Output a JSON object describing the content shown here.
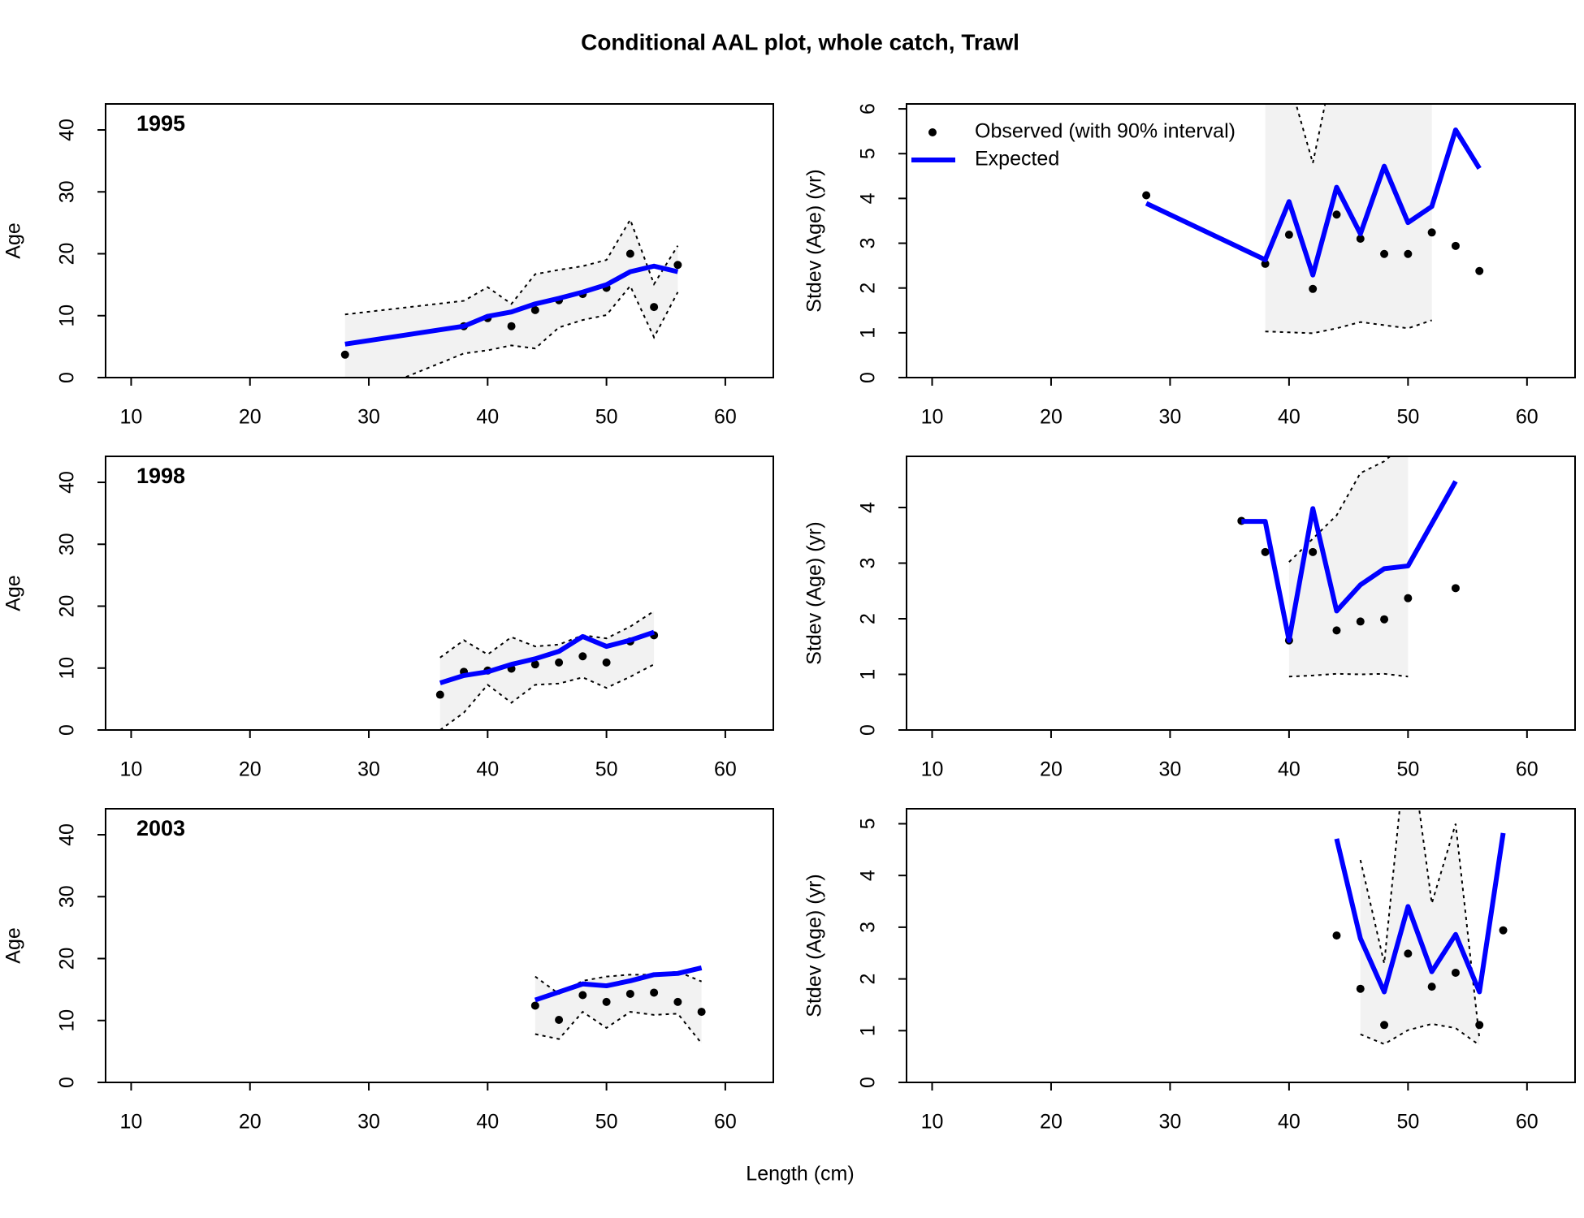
{
  "title": "Conditional AAL plot, whole catch, Trawl",
  "xlabel": "Length (cm)",
  "chart_data": [
    {
      "type": "line",
      "label": "1995",
      "ylabel": "Age",
      "xlim": [
        7.85,
        64.04
      ],
      "xticks": [
        10,
        20,
        30,
        40,
        50,
        60
      ],
      "ylim": [
        0,
        44.2
      ],
      "yticks": [
        0,
        10,
        20,
        30,
        40
      ],
      "x": [
        28,
        38,
        40,
        42,
        44,
        46,
        48,
        50,
        52,
        54,
        56
      ],
      "series": [
        {
          "color": "#000000",
          "interval_color": "#f2f2f2",
          "values": [
            3.7,
            8.3,
            9.6,
            8.3,
            10.9,
            12.5,
            13.5,
            14.5,
            20.0,
            11.4,
            18.2
          ],
          "lower": [
            -3.9,
            3.9,
            4.4,
            5.2,
            4.7,
            8.1,
            9.3,
            10.1,
            14.8,
            6.5,
            13.8
          ],
          "upper": [
            10.2,
            12.4,
            14.6,
            11.9,
            16.7,
            17.4,
            18.0,
            19.0,
            25.5,
            15.1,
            21.3
          ]
        },
        {
          "color": "#0000ff",
          "values": [
            5.4,
            8.3,
            9.9,
            10.6,
            11.9,
            12.8,
            13.8,
            15.0,
            17.1,
            18.0,
            17.1
          ]
        }
      ]
    },
    {
      "type": "line",
      "ylabel": "Stdev (Age) (yr)",
      "legend": "topleft",
      "xlim": [
        7.85,
        64.04
      ],
      "xticks": [
        10,
        20,
        30,
        40,
        50,
        60
      ],
      "ylim": [
        0,
        6.11
      ],
      "yticks": [
        0,
        1,
        2,
        3,
        4,
        5,
        6
      ],
      "x": [
        28,
        38,
        40,
        42,
        44,
        46,
        48,
        50,
        52,
        54,
        56
      ],
      "series": [
        {
          "name": "Observed (with 90% interval)",
          "color": "#000000",
          "interval_color": "#f2f2f2",
          "values": [
            4.07,
            2.54,
            3.19,
            1.98,
            3.64,
            3.1,
            2.76,
            2.76,
            3.24,
            2.94,
            2.38
          ],
          "lower": [
            null,
            1.03,
            1.01,
            0.99,
            1.1,
            1.24,
            1.17,
            1.1,
            1.28,
            null,
            null
          ],
          "upper": [
            null,
            7.5,
            6.65,
            4.79,
            7.35,
            8,
            8.5,
            8,
            7,
            null,
            null
          ]
        },
        {
          "name": "Expected",
          "color": "#0000ff",
          "values": [
            3.89,
            2.63,
            3.93,
            2.29,
            4.25,
            3.21,
            4.72,
            3.46,
            3.82,
            5.53,
            4.67
          ]
        }
      ]
    },
    {
      "type": "line",
      "label": "1998",
      "ylabel": "Age",
      "xlim": [
        7.85,
        64.04
      ],
      "xticks": [
        10,
        20,
        30,
        40,
        50,
        60
      ],
      "ylim": [
        0,
        44.2
      ],
      "yticks": [
        0,
        10,
        20,
        30,
        40
      ],
      "x": [
        36,
        38,
        40,
        42,
        44,
        46,
        48,
        50,
        52,
        54
      ],
      "series": [
        {
          "color": "#000000",
          "interval_color": "#f2f2f2",
          "values": [
            5.7,
            9.4,
            9.6,
            9.9,
            10.6,
            10.9,
            11.9,
            10.9,
            14.3,
            15.3
          ],
          "lower": [
            0.0,
            2.8,
            7.3,
            4.4,
            7.3,
            7.5,
            8.5,
            6.8,
            8.6,
            10.6
          ],
          "upper": [
            11.7,
            14.5,
            12.2,
            15.0,
            13.5,
            13.8,
            15.3,
            14.8,
            16.7,
            19.2
          ]
        },
        {
          "color": "#0000ff",
          "values": [
            7.6,
            8.8,
            9.4,
            10.6,
            11.5,
            12.7,
            15.1,
            13.5,
            14.5,
            15.8
          ]
        }
      ]
    },
    {
      "type": "line",
      "ylabel": "Stdev (Age) (yr)",
      "xlim": [
        7.85,
        64.04
      ],
      "xticks": [
        10,
        20,
        30,
        40,
        50,
        60
      ],
      "ylim": [
        0,
        4.92
      ],
      "yticks": [
        0,
        1,
        2,
        3,
        4
      ],
      "x": [
        36,
        38,
        40,
        42,
        44,
        46,
        48,
        50,
        54
      ],
      "series": [
        {
          "color": "#000000",
          "interval_color": "#f2f2f2",
          "values": [
            3.76,
            3.2,
            1.61,
            3.2,
            1.79,
            1.95,
            1.99,
            2.37,
            2.55
          ],
          "lower": [
            null,
            null,
            0.96,
            0.98,
            1.01,
            1.0,
            1.01,
            0.96,
            null
          ],
          "upper": [
            null,
            null,
            3.02,
            3.44,
            3.86,
            4.62,
            4.83,
            5.2,
            null
          ]
        },
        {
          "color": "#0000ff",
          "values": [
            3.75,
            3.75,
            1.61,
            3.98,
            2.14,
            2.61,
            2.9,
            2.95,
            4.47
          ]
        }
      ]
    },
    {
      "type": "line",
      "label": "2003",
      "ylabel": "Age",
      "xlim": [
        7.85,
        64.04
      ],
      "xticks": [
        10,
        20,
        30,
        40,
        50,
        60
      ],
      "ylim": [
        0,
        44.2
      ],
      "yticks": [
        0,
        10,
        20,
        30,
        40
      ],
      "x": [
        44,
        46,
        48,
        50,
        52,
        54,
        56,
        58
      ],
      "series": [
        {
          "color": "#000000",
          "interval_color": "#f2f2f2",
          "values": [
            12.4,
            10.1,
            14.1,
            13.0,
            14.3,
            14.5,
            13.0,
            11.4
          ],
          "lower": [
            7.8,
            7.0,
            11.4,
            8.8,
            11.4,
            10.9,
            11.1,
            6.3
          ],
          "upper": [
            17.1,
            14.3,
            16.4,
            17.1,
            17.4,
            17.4,
            17.9,
            16.3
          ]
        },
        {
          "color": "#0000ff",
          "values": [
            13.3,
            14.6,
            15.9,
            15.6,
            16.4,
            17.4,
            17.6,
            18.5
          ]
        }
      ]
    },
    {
      "type": "line",
      "ylabel": "Stdev (Age) (yr)",
      "xlim": [
        7.85,
        64.04
      ],
      "xticks": [
        10,
        20,
        30,
        40,
        50,
        60
      ],
      "ylim": [
        0,
        5.29
      ],
      "yticks": [
        0,
        1,
        2,
        3,
        4,
        5
      ],
      "x": [
        44,
        46,
        48,
        50,
        52,
        54,
        56,
        58
      ],
      "series": [
        {
          "color": "#000000",
          "interval_color": "#f2f2f2",
          "values": [
            2.84,
            1.81,
            1.11,
            2.49,
            1.85,
            2.12,
            1.11,
            2.94
          ],
          "lower": [
            null,
            0.93,
            0.74,
            1.01,
            1.13,
            1.05,
            0.72,
            null
          ],
          "upper": [
            null,
            4.3,
            2.3,
            6.9,
            3.46,
            5.0,
            0.85,
            null
          ]
        },
        {
          "color": "#0000ff",
          "values": [
            4.71,
            2.78,
            1.75,
            3.4,
            2.14,
            2.86,
            1.75,
            4.82
          ]
        }
      ]
    }
  ]
}
